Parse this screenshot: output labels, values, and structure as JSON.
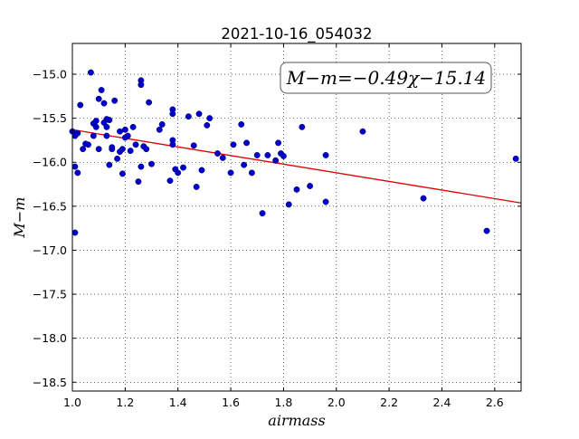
{
  "chart_data": {
    "type": "scatter",
    "title": "2021-10-16_054032",
    "xlabel": "airmass",
    "ylabel": "M−m",
    "xlim": [
      1.0,
      2.7
    ],
    "ylim": [
      -18.6,
      -14.65
    ],
    "y_inverted": true,
    "xticks": [
      "1.0",
      "1.2",
      "1.4",
      "1.6",
      "1.8",
      "2.0",
      "2.2",
      "2.4",
      "2.6"
    ],
    "xtick_values": [
      1.0,
      1.2,
      1.4,
      1.6,
      1.8,
      2.0,
      2.2,
      2.4,
      2.6
    ],
    "yticks": [
      "−15.0",
      "−15.5",
      "−16.0",
      "−16.5",
      "−17.0",
      "−17.5",
      "−18.0",
      "−18.5"
    ],
    "ytick_values": [
      -15.0,
      -15.5,
      -16.0,
      -16.5,
      -17.0,
      -17.5,
      -18.0,
      -18.5
    ],
    "grid": true,
    "point_color": "#0000cc",
    "fit_color": "#dd0000",
    "annotation": "M−m=−0.49χ−15.14",
    "fit": {
      "slope": -0.49,
      "intercept": -15.14
    },
    "x": [
      1.0,
      1.01,
      1.01,
      1.01,
      1.02,
      1.03,
      1.04,
      1.06,
      1.07,
      1.08,
      1.08,
      1.09,
      1.1,
      1.1,
      1.11,
      1.12,
      1.12,
      1.13,
      1.13,
      1.14,
      1.14,
      1.15,
      1.15,
      1.16,
      1.17,
      1.18,
      1.18,
      1.19,
      1.19,
      1.2,
      1.21,
      1.22,
      1.23,
      1.24,
      1.25,
      1.26,
      1.26,
      1.26,
      1.27,
      1.28,
      1.29,
      1.3,
      1.33,
      1.34,
      1.37,
      1.38,
      1.38,
      1.38,
      1.39,
      1.4,
      1.42,
      1.44,
      1.46,
      1.47,
      1.48,
      1.49,
      1.51,
      1.52,
      1.55,
      1.57,
      1.6,
      1.61,
      1.64,
      1.65,
      1.66,
      1.68,
      1.7,
      1.72,
      1.74,
      1.77,
      1.78,
      1.79,
      1.8,
      1.82,
      1.85,
      1.87,
      1.9,
      1.96,
      1.96,
      2.1,
      2.33,
      2.57,
      2.68,
      1.02,
      1.05,
      1.09,
      1.13,
      1.2,
      1.38
    ],
    "y": [
      -15.65,
      -15.7,
      -16.8,
      -16.05,
      -16.12,
      -15.35,
      -15.85,
      -15.8,
      -14.98,
      -15.56,
      -15.7,
      -15.6,
      -15.28,
      -15.85,
      -15.18,
      -15.55,
      -15.33,
      -15.7,
      -15.6,
      -15.52,
      -16.03,
      -15.85,
      -15.83,
      -15.3,
      -15.96,
      -15.88,
      -15.65,
      -15.85,
      -16.13,
      -15.63,
      -15.7,
      -15.87,
      -15.6,
      -15.8,
      -16.22,
      -16.05,
      -15.07,
      -15.12,
      -15.82,
      -15.85,
      -15.32,
      -16.02,
      -15.63,
      -15.57,
      -16.21,
      -15.75,
      -15.4,
      -15.45,
      -16.08,
      -16.12,
      -16.06,
      -15.48,
      -15.81,
      -16.28,
      -15.45,
      -16.09,
      -15.58,
      -15.5,
      -15.9,
      -15.95,
      -16.12,
      -15.8,
      -15.57,
      -16.03,
      -15.78,
      -16.12,
      -15.92,
      -16.58,
      -15.92,
      -15.98,
      -15.78,
      -15.9,
      -15.93,
      -16.48,
      -16.31,
      -15.6,
      -16.27,
      -15.92,
      -16.45,
      -15.65,
      -16.41,
      -16.78,
      -15.96,
      -15.67,
      -15.79,
      -15.53,
      -15.51,
      -15.72,
      -15.8
    ]
  }
}
